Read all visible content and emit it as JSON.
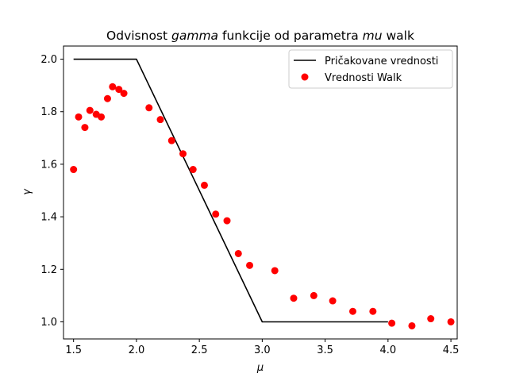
{
  "chart_data": {
    "type": "line",
    "title_parts": [
      {
        "text": "Odvisnost ",
        "italic": false
      },
      {
        "text": "gamma",
        "italic": true
      },
      {
        "text": " funkcije od parametra ",
        "italic": false
      },
      {
        "text": "mu",
        "italic": true
      },
      {
        "text": " walk",
        "italic": false
      }
    ],
    "xlabel": "μ",
    "ylabel": "γ",
    "xlim": [
      1.42,
      4.55
    ],
    "ylim": [
      0.935,
      2.05
    ],
    "xticks": [
      1.5,
      2.0,
      2.5,
      3.0,
      3.5,
      4.0,
      4.5
    ],
    "xtick_labels": [
      "1.5",
      "2.0",
      "2.5",
      "3.0",
      "3.5",
      "4.0",
      "4.5"
    ],
    "yticks": [
      1.0,
      1.2,
      1.4,
      1.6,
      1.8,
      2.0
    ],
    "ytick_labels": [
      "1.0",
      "1.2",
      "1.4",
      "1.6",
      "1.8",
      "2.0"
    ],
    "grid": false,
    "legend_position": "top-right",
    "series": [
      {
        "name": "Pričakovane vrednosti",
        "kind": "line",
        "color": "#000000",
        "x": [
          1.5,
          2.0,
          3.0,
          4.0
        ],
        "y": [
          2.0,
          2.0,
          1.0,
          1.0
        ]
      },
      {
        "name": "Vrednosti Walk",
        "kind": "scatter",
        "color": "#ff0000",
        "x": [
          1.5,
          1.54,
          1.59,
          1.63,
          1.68,
          1.72,
          1.77,
          1.81,
          1.86,
          1.9,
          2.1,
          2.19,
          2.28,
          2.37,
          2.45,
          2.54,
          2.63,
          2.72,
          2.81,
          2.9,
          3.1,
          3.25,
          3.41,
          3.56,
          3.72,
          3.88,
          4.03,
          4.19,
          4.34,
          4.5
        ],
        "y": [
          1.58,
          1.78,
          1.74,
          1.805,
          1.79,
          1.78,
          1.85,
          1.895,
          1.885,
          1.87,
          1.815,
          1.77,
          1.69,
          1.64,
          1.58,
          1.52,
          1.41,
          1.385,
          1.26,
          1.215,
          1.195,
          1.09,
          1.1,
          1.08,
          1.04,
          1.04,
          0.995,
          0.985,
          1.012,
          1.0
        ]
      }
    ]
  }
}
